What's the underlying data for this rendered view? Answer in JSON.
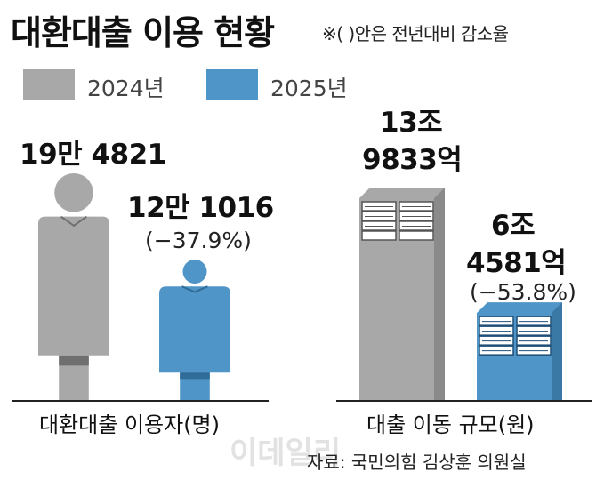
{
  "title": "대환대출 이용 현황",
  "note": "※(  )안은 전년대비 감소율",
  "legend": [
    {
      "label": "2024년",
      "color": "#a8a8a8"
    },
    {
      "label": "2025년",
      "color": "#4f95c7"
    }
  ],
  "source": "자료: 국민의힘 김상훈 의원실",
  "watermark": "이데일리",
  "chart_data": [
    {
      "type": "bar",
      "xlabel": "대환대출 이용자(명)",
      "categories": [
        "2024년",
        "2025년"
      ],
      "values": [
        194821,
        121016
      ],
      "value_labels": [
        "19만 4821",
        "12만 1016"
      ],
      "change_label": "(−37.9%)",
      "change_pct": -37.9,
      "icon": "person-icon"
    },
    {
      "type": "bar",
      "xlabel": "대출 이동 규모(원)",
      "categories": [
        "2024년",
        "2025년"
      ],
      "values": [
        139833,
        64581
      ],
      "unit": "억원",
      "value_labels_line1": [
        "13조",
        "6조"
      ],
      "value_labels_line2": [
        "9833억",
        "4581억"
      ],
      "change_label": "(−53.8%)",
      "change_pct": -53.8,
      "icon": "money-stack-icon"
    }
  ]
}
